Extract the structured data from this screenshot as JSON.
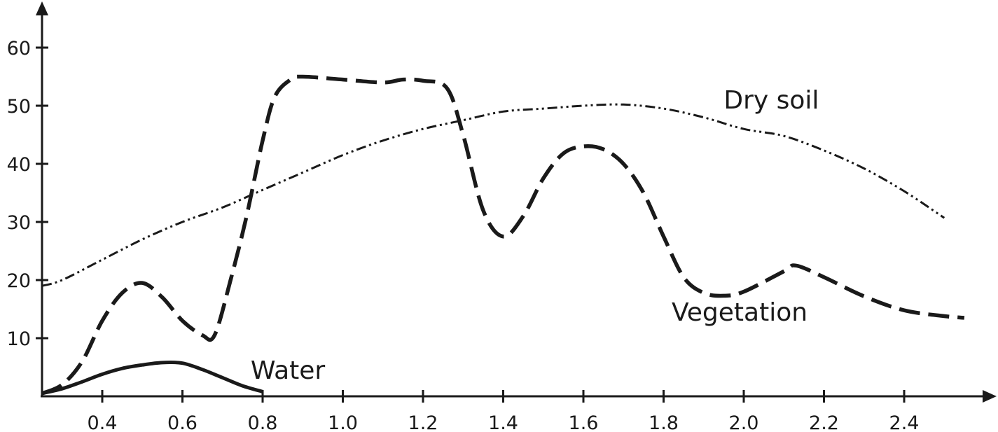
{
  "chart_data": {
    "type": "line",
    "title": "",
    "xlabel": "",
    "ylabel": "",
    "xlim": [
      0.25,
      2.7
    ],
    "ylim": [
      0,
      65
    ],
    "x_ticks": [
      "0.4",
      "0.6",
      "0.8",
      "1.0",
      "1.2",
      "1.4",
      "1.6",
      "1.8",
      "2.0",
      "2.2",
      "2.4"
    ],
    "x_tick_values": [
      0.4,
      0.6,
      0.8,
      1.0,
      1.2,
      1.4,
      1.6,
      1.8,
      2.0,
      2.2,
      2.4
    ],
    "y_ticks": [
      "10",
      "20",
      "30",
      "40",
      "50",
      "60"
    ],
    "y_tick_values": [
      10,
      20,
      30,
      40,
      50,
      60
    ],
    "grid": false,
    "legend": "none",
    "series": [
      {
        "name": "Dry soil",
        "style": "dash-dot-dot",
        "label_at": [
          1.95,
          49.5
        ],
        "x": [
          0.25,
          0.3,
          0.4,
          0.5,
          0.6,
          0.7,
          0.8,
          0.9,
          1.0,
          1.1,
          1.2,
          1.3,
          1.4,
          1.5,
          1.6,
          1.7,
          1.8,
          1.9,
          2.0,
          2.1,
          2.2,
          2.3,
          2.4,
          2.5
        ],
        "y": [
          19,
          20,
          23.5,
          27,
          30,
          32.5,
          35.5,
          38.5,
          41.5,
          44,
          46,
          47.5,
          49,
          49.5,
          50,
          50.2,
          49.5,
          48,
          46,
          44.8,
          42.3,
          39.2,
          35.3,
          30.7
        ]
      },
      {
        "name": "Vegetation",
        "style": "long-dash",
        "label_at": [
          1.82,
          13
        ],
        "x": [
          0.25,
          0.3,
          0.35,
          0.4,
          0.45,
          0.5,
          0.55,
          0.6,
          0.65,
          0.68,
          0.72,
          0.76,
          0.8,
          0.83,
          0.87,
          0.9,
          1.0,
          1.1,
          1.15,
          1.2,
          1.26,
          1.3,
          1.35,
          1.4,
          1.45,
          1.5,
          1.55,
          1.6,
          1.65,
          1.7,
          1.75,
          1.8,
          1.85,
          1.9,
          1.95,
          2.0,
          2.1,
          2.13,
          2.2,
          2.3,
          2.4,
          2.5,
          2.55
        ],
        "y": [
          0.5,
          2,
          6,
          13,
          17.8,
          19.5,
          17,
          13,
          10.5,
          10.5,
          20,
          31,
          44,
          51.5,
          54.5,
          55,
          54.5,
          54,
          54.5,
          54.3,
          53,
          45,
          32,
          27.5,
          31,
          37.5,
          41.8,
          43,
          42.5,
          40,
          35,
          27.5,
          20.5,
          17.8,
          17.3,
          18,
          21.5,
          22.5,
          20.5,
          17.2,
          14.8,
          13.8,
          13.5
        ]
      },
      {
        "name": "Water",
        "style": "solid",
        "label_at": [
          0.77,
          3
        ],
        "x": [
          0.25,
          0.3,
          0.35,
          0.4,
          0.45,
          0.5,
          0.55,
          0.6,
          0.65,
          0.7,
          0.75,
          0.8
        ],
        "y": [
          0.5,
          1.3,
          2.5,
          3.8,
          4.8,
          5.4,
          5.8,
          5.7,
          4.6,
          3.2,
          1.8,
          0.8
        ]
      }
    ]
  }
}
